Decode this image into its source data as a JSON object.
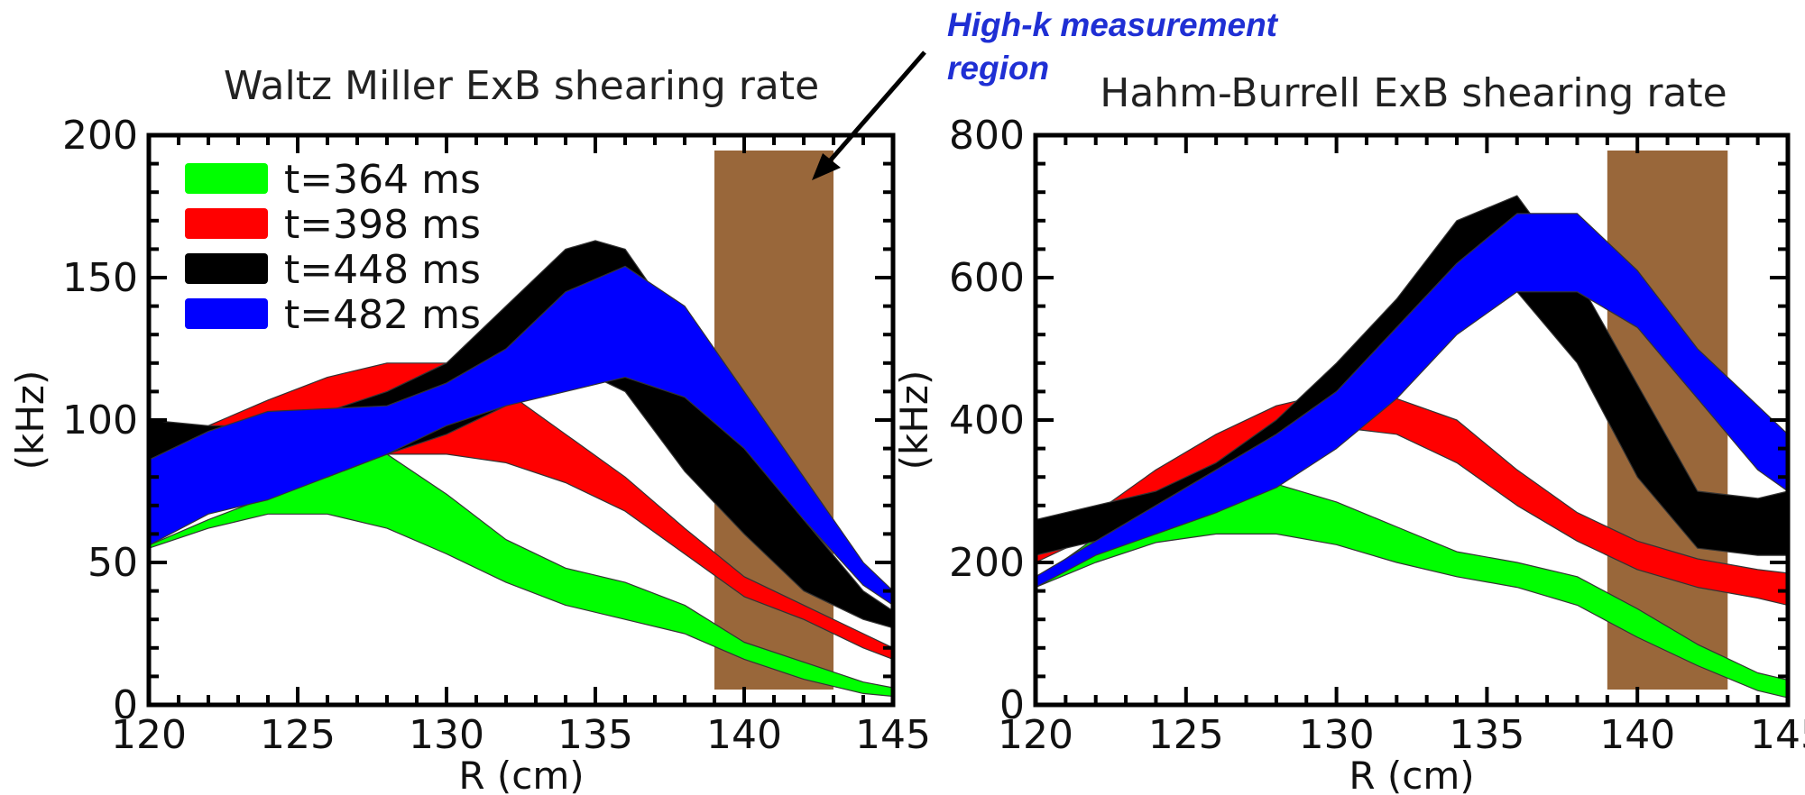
{
  "colors": {
    "measurement_region": "#99673a",
    "annotation": "#1f2fd4",
    "band_edge": "#333333"
  },
  "annotation": {
    "line1": "High-k measurement",
    "line2": "region"
  },
  "chart_data": [
    {
      "type": "area",
      "title": "Waltz Miller ExB shearing rate",
      "xlabel": "R (cm)",
      "ylabel": "(kHz)",
      "xlim": [
        120,
        145
      ],
      "ylim": [
        0,
        200
      ],
      "xticks": [
        120,
        125,
        130,
        135,
        140,
        145
      ],
      "yticks": [
        0,
        50,
        100,
        150,
        200
      ],
      "legend": "top-left",
      "shaded_region": {
        "x": [
          139,
          143
        ],
        "color": "#99673a"
      },
      "series": [
        {
          "name": "t=364 ms",
          "color": "#00ff00",
          "x": [
            120,
            122,
            124,
            126,
            128,
            130,
            132,
            134,
            136,
            138,
            140,
            142,
            144,
            145
          ],
          "lower": [
            55,
            62,
            67,
            67,
            62,
            53,
            43,
            35,
            30,
            25,
            16,
            9,
            4,
            3
          ],
          "upper": [
            56,
            65,
            73,
            80,
            88,
            74,
            58,
            48,
            43,
            35,
            22,
            15,
            8,
            6
          ]
        },
        {
          "name": "t=398 ms",
          "color": "#ff0000",
          "x": [
            120,
            122,
            124,
            126,
            128,
            130,
            132,
            134,
            136,
            138,
            140,
            142,
            144,
            145
          ],
          "lower": [
            90,
            92,
            80,
            82,
            88,
            88,
            85,
            78,
            68,
            53,
            38,
            30,
            20,
            16
          ],
          "upper": [
            93,
            98,
            107,
            115,
            120,
            120,
            110,
            95,
            80,
            62,
            45,
            35,
            25,
            20
          ]
        },
        {
          "name": "t=448 ms",
          "color": "#000000",
          "x": [
            120,
            122,
            124,
            126,
            128,
            130,
            132,
            134,
            135,
            136,
            138,
            140,
            142,
            144,
            145
          ],
          "lower": [
            84,
            85,
            78,
            80,
            88,
            95,
            105,
            112,
            115,
            110,
            82,
            60,
            40,
            30,
            27
          ],
          "upper": [
            100,
            98,
            98,
            103,
            110,
            120,
            140,
            160,
            163,
            160,
            130,
            95,
            65,
            40,
            33
          ]
        },
        {
          "name": "t=482 ms",
          "color": "#0000ff",
          "x": [
            120,
            122,
            124,
            126,
            128,
            130,
            132,
            134,
            136,
            138,
            140,
            142,
            144,
            145
          ],
          "lower": [
            56,
            67,
            72,
            80,
            88,
            98,
            105,
            110,
            115,
            108,
            90,
            65,
            42,
            35
          ],
          "upper": [
            86,
            96,
            103,
            104,
            105,
            113,
            125,
            145,
            154,
            140,
            110,
            80,
            50,
            40
          ]
        }
      ]
    },
    {
      "type": "area",
      "title": "Hahm-Burrell ExB shearing rate",
      "xlabel": "R (cm)",
      "ylabel": "(kHz)",
      "xlim": [
        120,
        145
      ],
      "ylim": [
        0,
        800
      ],
      "xticks": [
        120,
        125,
        130,
        135,
        140,
        145
      ],
      "yticks": [
        0,
        200,
        400,
        600,
        800
      ],
      "shaded_region": {
        "x": [
          139,
          143
        ],
        "color": "#99673a"
      },
      "series": [
        {
          "name": "t=364 ms",
          "color": "#00ff00",
          "x": [
            120,
            122,
            124,
            126,
            128,
            130,
            132,
            134,
            136,
            138,
            140,
            142,
            144,
            145
          ],
          "lower": [
            165,
            200,
            228,
            240,
            240,
            225,
            200,
            180,
            165,
            140,
            95,
            55,
            20,
            10
          ],
          "upper": [
            175,
            235,
            265,
            285,
            310,
            285,
            250,
            215,
            200,
            180,
            135,
            85,
            45,
            35
          ]
        },
        {
          "name": "t=398 ms",
          "color": "#ff0000",
          "x": [
            120,
            122,
            124,
            126,
            128,
            130,
            132,
            134,
            136,
            138,
            140,
            142,
            144,
            145
          ],
          "lower": [
            200,
            240,
            260,
            290,
            320,
            390,
            380,
            340,
            280,
            230,
            190,
            165,
            150,
            140
          ],
          "upper": [
            215,
            270,
            330,
            380,
            420,
            440,
            430,
            400,
            330,
            270,
            230,
            205,
            190,
            185
          ]
        },
        {
          "name": "t=448 ms",
          "color": "#000000",
          "x": [
            120,
            122,
            124,
            126,
            128,
            130,
            132,
            134,
            136,
            138,
            140,
            142,
            144,
            145
          ],
          "lower": [
            210,
            230,
            240,
            270,
            310,
            380,
            450,
            540,
            580,
            480,
            320,
            220,
            210,
            210
          ],
          "upper": [
            260,
            280,
            300,
            340,
            400,
            480,
            570,
            680,
            715,
            600,
            450,
            300,
            290,
            300
          ]
        },
        {
          "name": "t=482 ms",
          "color": "#0000ff",
          "x": [
            120,
            122,
            124,
            126,
            128,
            130,
            132,
            134,
            136,
            138,
            140,
            142,
            144,
            145
          ],
          "lower": [
            165,
            210,
            240,
            270,
            305,
            360,
            430,
            520,
            580,
            580,
            530,
            430,
            330,
            300
          ],
          "upper": [
            180,
            230,
            280,
            330,
            380,
            440,
            530,
            620,
            690,
            690,
            610,
            500,
            420,
            380
          ]
        }
      ]
    }
  ]
}
